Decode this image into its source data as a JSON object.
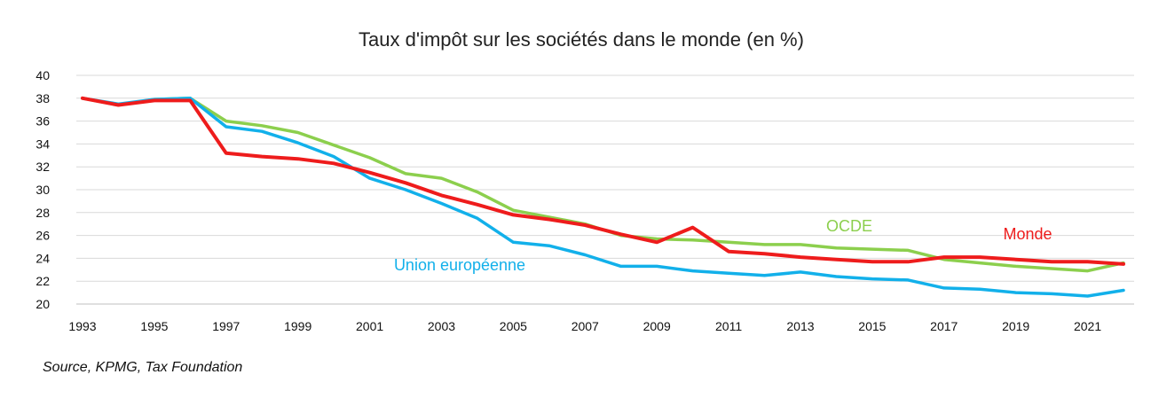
{
  "chart_data": {
    "type": "line",
    "title": "Taux d'impôt sur les sociétés dans le monde (en %)",
    "xlabel": "",
    "ylabel": "",
    "ylim": [
      20,
      40
    ],
    "y_ticks": [
      20,
      22,
      24,
      26,
      28,
      30,
      32,
      34,
      36,
      38,
      40
    ],
    "x_ticks": [
      1993,
      1995,
      1997,
      1999,
      2001,
      2003,
      2005,
      2007,
      2009,
      2011,
      2013,
      2015,
      2017,
      2019,
      2021
    ],
    "x": [
      1993,
      1994,
      1995,
      1996,
      1997,
      1998,
      1999,
      2000,
      2001,
      2002,
      2003,
      2004,
      2005,
      2006,
      2007,
      2008,
      2009,
      2010,
      2011,
      2012,
      2013,
      2014,
      2015,
      2016,
      2017,
      2018,
      2019,
      2020,
      2021,
      2022
    ],
    "grid": true,
    "series": [
      {
        "name": "OCDE",
        "color": "#8ccf4d",
        "values": [
          38.0,
          37.4,
          37.9,
          38.0,
          36.0,
          35.6,
          35.0,
          33.9,
          32.8,
          31.4,
          31.0,
          29.8,
          28.2,
          27.6,
          27.0,
          26.0,
          25.7,
          25.6,
          25.4,
          25.2,
          25.2,
          24.9,
          24.8,
          24.7,
          23.9,
          23.6,
          23.3,
          23.1,
          22.9,
          23.6
        ]
      },
      {
        "name": "Monde",
        "color": "#ee1c1c",
        "values": [
          38.0,
          37.4,
          37.8,
          37.8,
          33.2,
          32.9,
          32.7,
          32.3,
          31.5,
          30.6,
          29.5,
          28.7,
          27.8,
          27.4,
          26.9,
          26.1,
          25.4,
          26.7,
          24.6,
          24.4,
          24.1,
          23.9,
          23.7,
          23.7,
          24.1,
          24.1,
          23.9,
          23.7,
          23.7,
          23.5
        ]
      },
      {
        "name": "Union européenne",
        "color": "#12b0ea",
        "values": [
          38.0,
          37.5,
          37.9,
          38.0,
          35.5,
          35.1,
          34.1,
          32.9,
          31.0,
          30.0,
          28.8,
          27.5,
          25.4,
          25.1,
          24.3,
          23.3,
          23.3,
          22.9,
          22.7,
          22.5,
          22.8,
          22.4,
          22.2,
          22.1,
          21.4,
          21.3,
          21.0,
          20.9,
          20.7,
          21.2
        ]
      }
    ]
  },
  "source_text": "Source, KPMG, Tax Foundation"
}
